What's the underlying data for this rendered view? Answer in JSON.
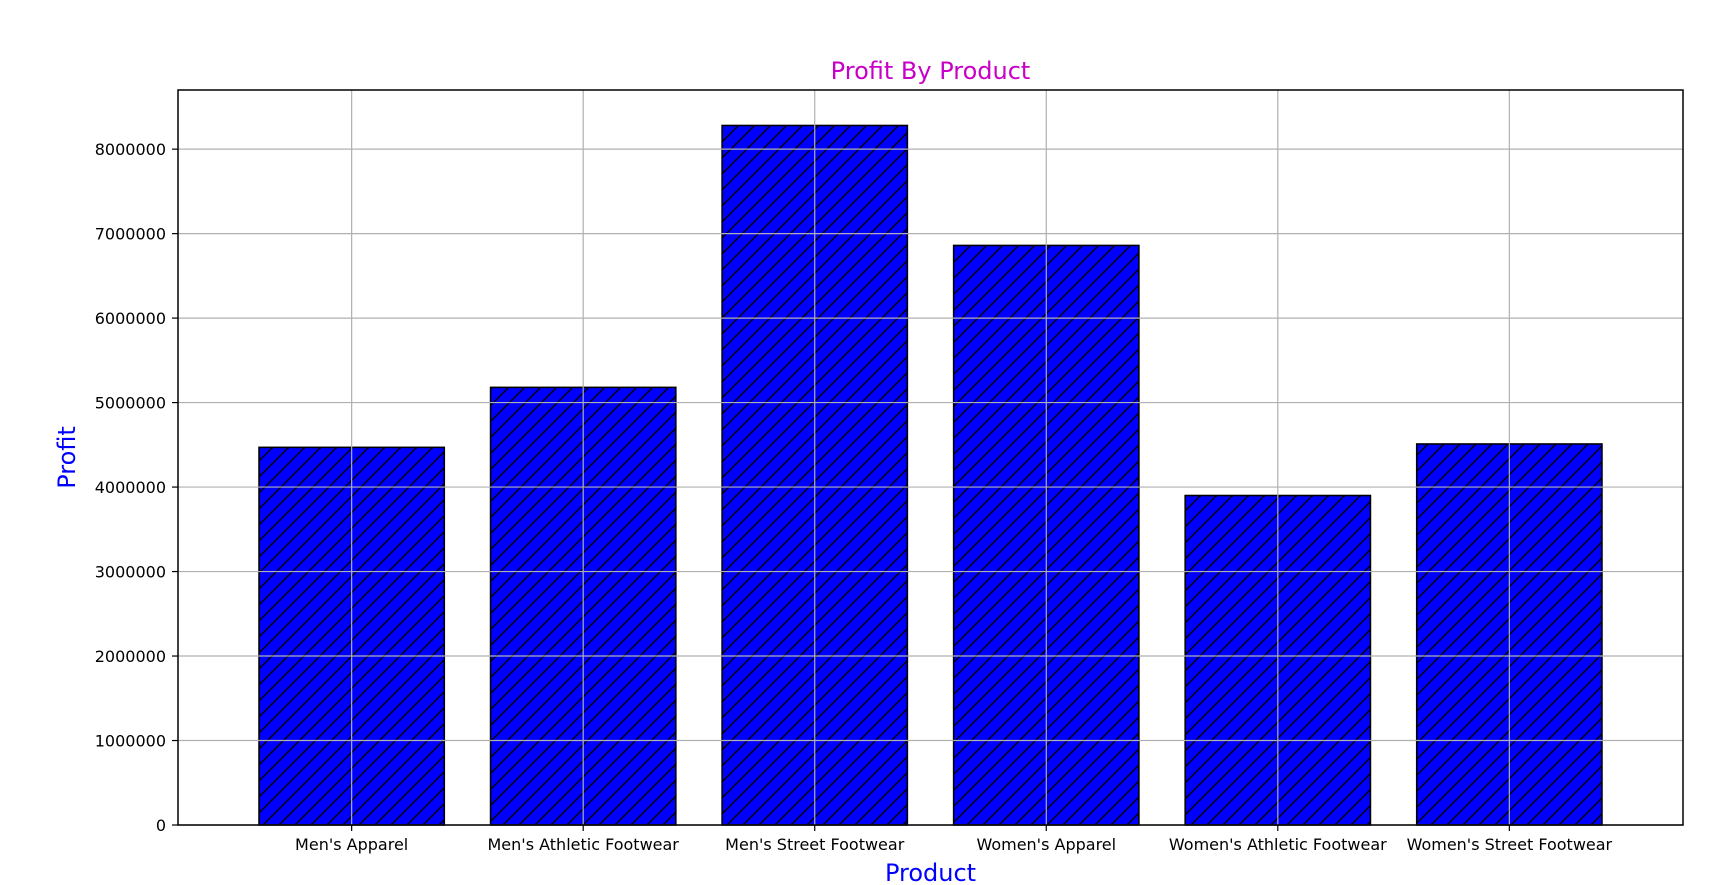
{
  "chart_data": {
    "type": "bar",
    "title": "Profit By Product",
    "xlabel": "Product",
    "ylabel": "Profit",
    "categories": [
      "Men's Apparel",
      "Men's Athletic Footwear",
      "Men's Street Footwear",
      "Women's Apparel",
      "Women's Athletic Footwear",
      "Women's Street Footwear"
    ],
    "values": [
      4470000,
      5180000,
      8280000,
      6860000,
      3900000,
      4510000
    ],
    "ylim": [
      0,
      8700000
    ],
    "yticks": [
      0,
      1000000,
      2000000,
      3000000,
      4000000,
      5000000,
      6000000,
      7000000,
      8000000
    ],
    "ytick_labels": [
      "0",
      "1000000",
      "2000000",
      "3000000",
      "4000000",
      "5000000",
      "6000000",
      "7000000",
      "8000000"
    ],
    "grid": true,
    "bar_hatch": "diagonal",
    "colors": {
      "bar_fill": "#0000ff",
      "bar_edge": "#000000",
      "title": "#c800c8",
      "axis_title": "#0000ff",
      "grid": "#b0b0b0"
    }
  }
}
